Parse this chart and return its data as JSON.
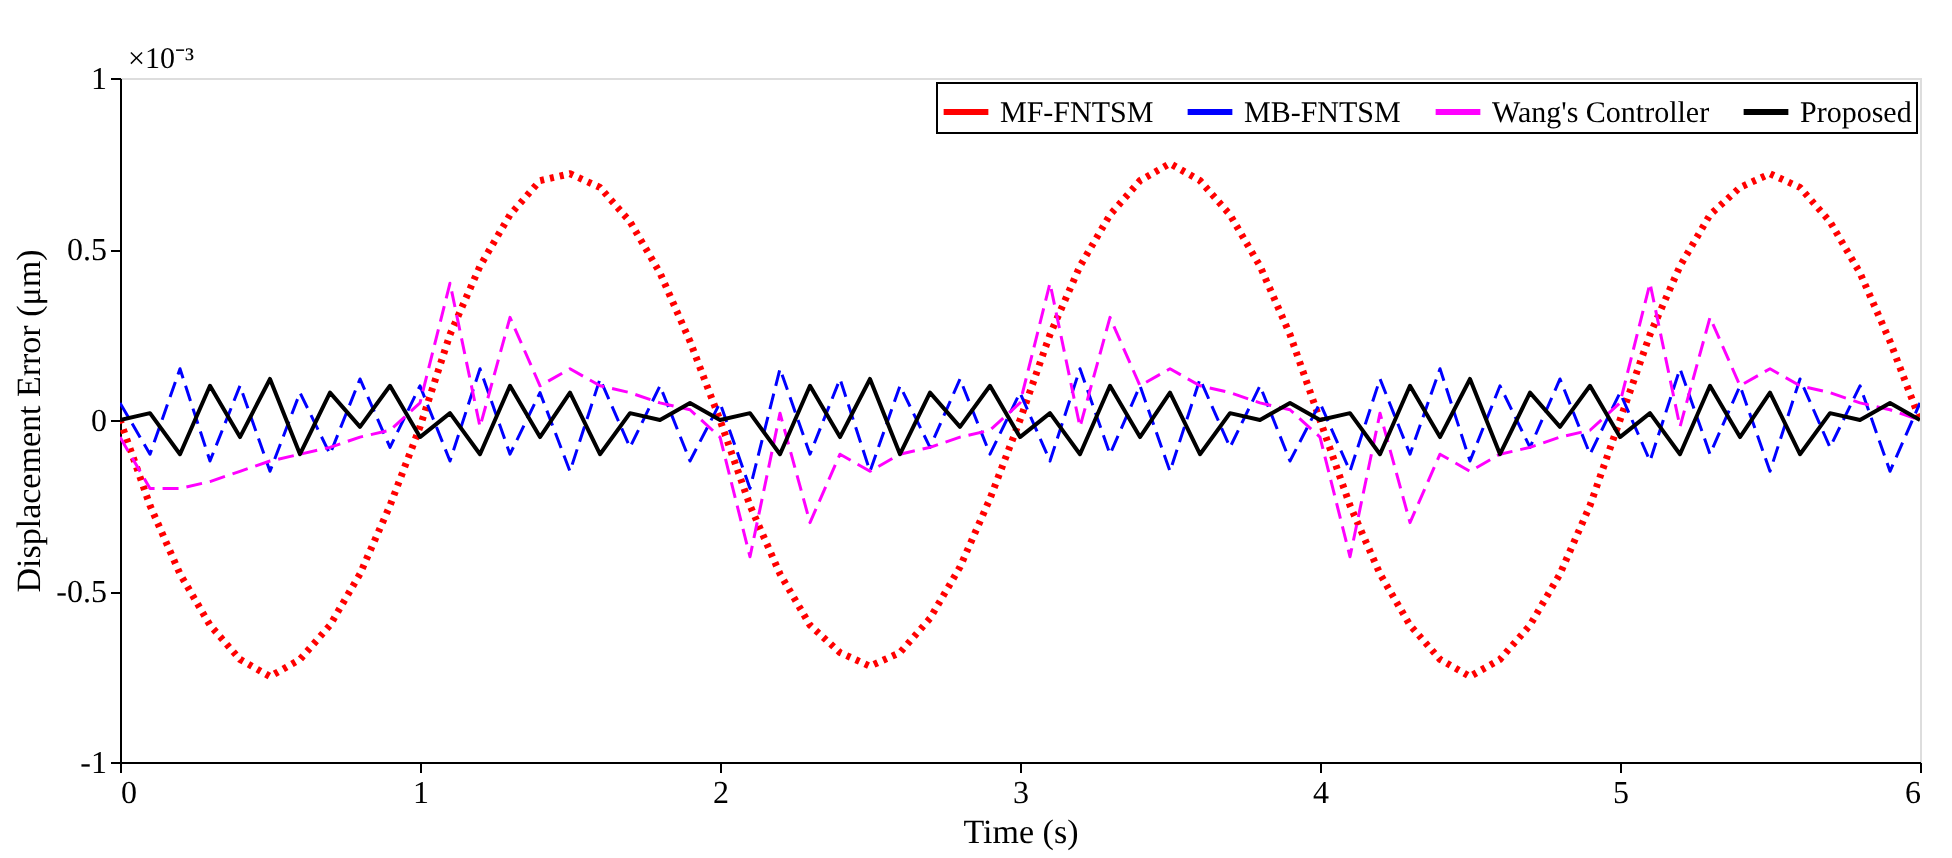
{
  "chart_data": {
    "type": "line",
    "xlabel": "Time (s)",
    "ylabel": "Displacement Error (μm)",
    "annotations": [
      "×10⁻³"
    ],
    "xlim": [
      0,
      6
    ],
    "xticks": [
      0,
      1,
      2,
      3,
      4,
      5,
      6
    ],
    "ylim": [
      -1,
      1
    ],
    "yticks": [
      -1,
      -0.5,
      0,
      0.5,
      1
    ],
    "grid": false,
    "legend": "top right",
    "x": [
      0,
      0.1,
      0.2,
      0.3,
      0.4,
      0.5,
      0.6,
      0.7,
      0.8,
      0.9,
      1,
      1.1,
      1.2,
      1.3,
      1.4,
      1.5,
      1.6,
      1.7,
      1.8,
      1.9,
      2,
      2.1,
      2.2,
      2.3,
      2.4,
      2.5,
      2.6,
      2.7,
      2.8,
      2.9,
      3,
      3.1,
      3.2,
      3.3,
      3.4,
      3.5,
      3.6,
      3.7,
      3.8,
      3.9,
      4,
      4.1,
      4.2,
      4.3,
      4.4,
      4.5,
      4.6,
      4.7,
      4.8,
      4.9,
      5,
      5.1,
      5.2,
      5.3,
      5.4,
      5.5,
      5.6,
      5.7,
      5.8,
      5.9,
      6
    ],
    "series": [
      {
        "name": "MF-FNTSM",
        "color": "#ff0000",
        "line_style": "dotted",
        "values": [
          0,
          -0.25,
          -0.45,
          -0.6,
          -0.7,
          -0.75,
          -0.7,
          -0.6,
          -0.45,
          -0.25,
          -0.02,
          0.25,
          0.45,
          0.6,
          0.7,
          0.72,
          0.68,
          0.58,
          0.43,
          0.23,
          0,
          -0.25,
          -0.45,
          -0.6,
          -0.68,
          -0.72,
          -0.68,
          -0.58,
          -0.43,
          -0.23,
          0,
          0.25,
          0.45,
          0.6,
          0.7,
          0.75,
          0.7,
          0.6,
          0.45,
          0.25,
          0,
          -0.25,
          -0.45,
          -0.6,
          -0.7,
          -0.75,
          -0.7,
          -0.6,
          -0.45,
          -0.25,
          0,
          0.25,
          0.45,
          0.6,
          0.68,
          0.72,
          0.68,
          0.58,
          0.43,
          0.23,
          0
        ]
      },
      {
        "name": "MB-FNTSM",
        "color": "#0000ff",
        "line_style": "dashed",
        "values": [
          0.05,
          -0.1,
          0.15,
          -0.12,
          0.1,
          -0.15,
          0.08,
          -0.1,
          0.12,
          -0.08,
          0.1,
          -0.12,
          0.15,
          -0.1,
          0.08,
          -0.15,
          0.12,
          -0.08,
          0.1,
          -0.12,
          0.05,
          -0.2,
          0.15,
          -0.1,
          0.12,
          -0.15,
          0.1,
          -0.08,
          0.12,
          -0.1,
          0.08,
          -0.12,
          0.15,
          -0.1,
          0.1,
          -0.15,
          0.12,
          -0.08,
          0.1,
          -0.12,
          0.05,
          -0.15,
          0.12,
          -0.1,
          0.15,
          -0.12,
          0.1,
          -0.08,
          0.12,
          -0.1,
          0.08,
          -0.12,
          0.15,
          -0.1,
          0.1,
          -0.15,
          0.12,
          -0.08,
          0.1,
          -0.15,
          0.05
        ]
      },
      {
        "name": "Wang's Controller",
        "color": "#ff00ff",
        "line_style": "dashed",
        "values": [
          -0.05,
          -0.2,
          -0.2,
          -0.18,
          -0.15,
          -0.12,
          -0.1,
          -0.08,
          -0.05,
          -0.03,
          0.05,
          0.4,
          -0.02,
          0.3,
          0.1,
          0.15,
          0.1,
          0.08,
          0.05,
          0.03,
          -0.05,
          -0.4,
          0.02,
          -0.3,
          -0.1,
          -0.15,
          -0.1,
          -0.08,
          -0.05,
          -0.03,
          0.05,
          0.4,
          -0.02,
          0.3,
          0.1,
          0.15,
          0.1,
          0.08,
          0.05,
          0.03,
          -0.05,
          -0.4,
          0.02,
          -0.3,
          -0.1,
          -0.15,
          -0.1,
          -0.08,
          -0.05,
          -0.03,
          0.05,
          0.4,
          -0.02,
          0.3,
          0.1,
          0.15,
          0.1,
          0.08,
          0.05,
          0.03,
          0
        ]
      },
      {
        "name": "Proposed",
        "color": "#000000",
        "line_style": "solid",
        "values": [
          0,
          0.02,
          -0.1,
          0.1,
          -0.05,
          0.12,
          -0.1,
          0.08,
          -0.02,
          0.1,
          -0.05,
          0.02,
          -0.1,
          0.1,
          -0.05,
          0.08,
          -0.1,
          0.02,
          0,
          0.05,
          0,
          0.02,
          -0.1,
          0.1,
          -0.05,
          0.12,
          -0.1,
          0.08,
          -0.02,
          0.1,
          -0.05,
          0.02,
          -0.1,
          0.1,
          -0.05,
          0.08,
          -0.1,
          0.02,
          0,
          0.05,
          0,
          0.02,
          -0.1,
          0.1,
          -0.05,
          0.12,
          -0.1,
          0.08,
          -0.02,
          0.1,
          -0.05,
          0.02,
          -0.1,
          0.1,
          -0.05,
          0.08,
          -0.1,
          0.02,
          0,
          0.05,
          0
        ]
      }
    ]
  }
}
